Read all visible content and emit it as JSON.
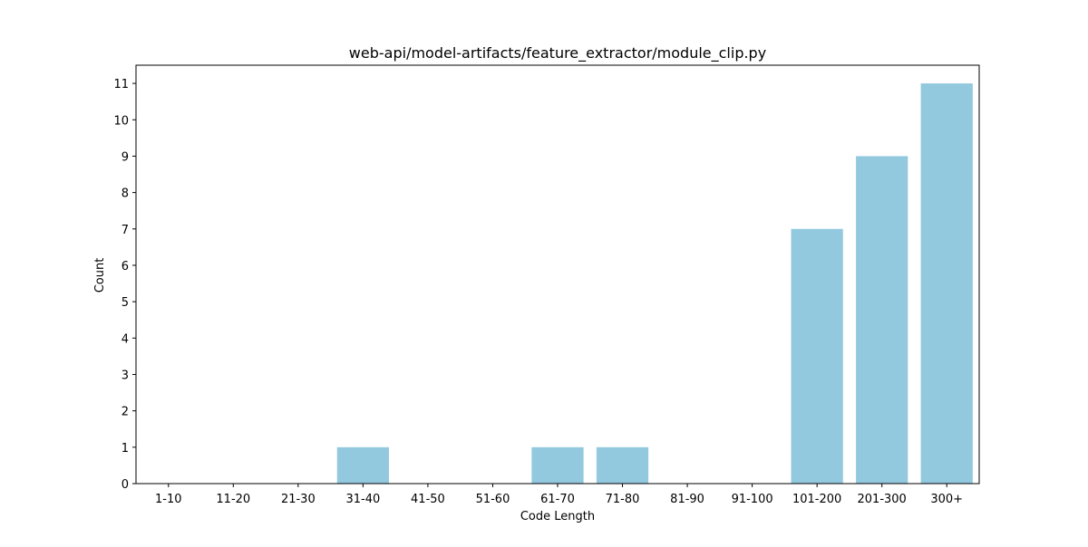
{
  "chart_data": {
    "type": "bar",
    "title": "web-api/model-artifacts/feature_extractor/module_clip.py",
    "xlabel": "Code Length",
    "ylabel": "Count",
    "categories": [
      "1-10",
      "11-20",
      "21-30",
      "31-40",
      "41-50",
      "51-60",
      "61-70",
      "71-80",
      "81-90",
      "91-100",
      "101-200",
      "201-300",
      "300+"
    ],
    "values": [
      0,
      0,
      0,
      1,
      0,
      0,
      1,
      1,
      0,
      0,
      7,
      9,
      11
    ],
    "ylim": [
      0,
      11.5
    ],
    "yticks": [
      0,
      1,
      2,
      3,
      4,
      5,
      6,
      7,
      8,
      9,
      10,
      11
    ],
    "bar_color": "#92c9de",
    "grid": false,
    "legend": "none"
  }
}
